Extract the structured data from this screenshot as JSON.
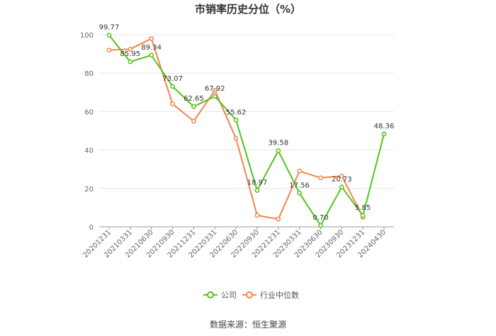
{
  "chart_data": {
    "type": "line",
    "title": "市销率历史分位（%）",
    "x": [
      "20201231",
      "20210331",
      "20210630",
      "20210930",
      "20211231",
      "20220331",
      "20220630",
      "20220930",
      "20221231",
      "20230331",
      "20230630",
      "20230930",
      "20231231",
      "20240430"
    ],
    "ylim": [
      0,
      100
    ],
    "yticks": [
      0,
      20,
      40,
      60,
      80,
      100
    ],
    "grid": true,
    "legend_position": "bottom",
    "series": [
      {
        "name": "公司",
        "color": "#52c41a",
        "values": [
          99.77,
          85.95,
          89.34,
          73.07,
          62.65,
          67.92,
          55.62,
          18.97,
          39.58,
          17.56,
          0.7,
          20.73,
          5.85,
          48.36
        ],
        "labels": [
          "99.77",
          "85.95",
          "89.34",
          "73.07",
          "62.65",
          "67.92",
          "55.62",
          "18.97",
          "39.58",
          "17.56",
          "0.70",
          "20.73",
          "5.85",
          "48.36"
        ]
      },
      {
        "name": "行业中位数",
        "color": "#f5844c",
        "values": [
          92,
          92.5,
          98,
          64,
          55,
          71,
          46,
          6,
          4,
          29,
          25.5,
          26.5,
          5,
          null
        ]
      }
    ]
  },
  "source_text": "数据来源：恒生聚源"
}
